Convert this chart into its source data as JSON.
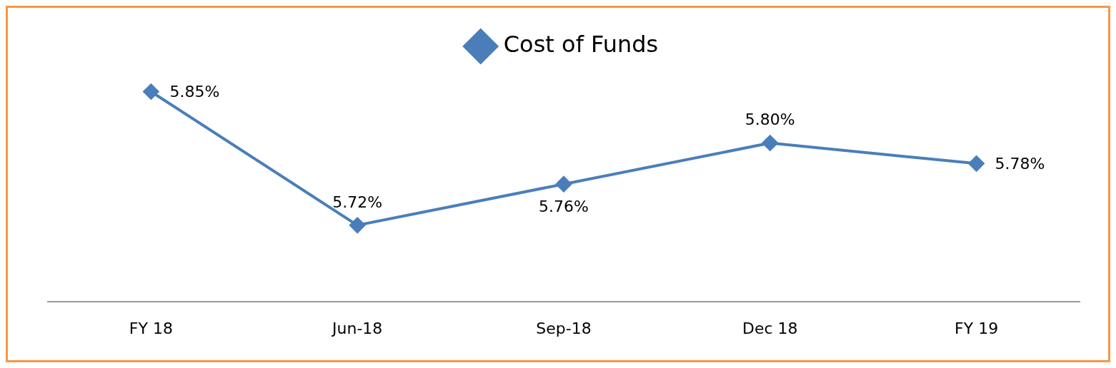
{
  "chart_data": {
    "type": "line",
    "categories": [
      "FY 18",
      "Jun-18",
      "Sep-18",
      "Dec 18",
      "FY 19"
    ],
    "series": [
      {
        "name": "Cost of Funds",
        "color": "#4a7ebb",
        "values": [
          5.85,
          5.72,
          5.76,
          5.8,
          5.78
        ],
        "value_labels": [
          "5.85%",
          "5.72%",
          "5.76%",
          "5.80%",
          "5.78%"
        ]
      }
    ],
    "grid": false,
    "legend": "top",
    "marker": "diamond",
    "line_style": "solid"
  }
}
